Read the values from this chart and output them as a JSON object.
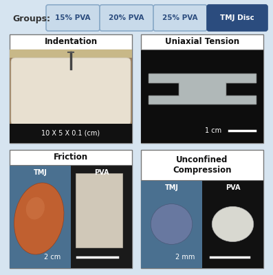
{
  "background_color": "#d6e4f0",
  "groups_label": "Groups:",
  "group_buttons": [
    "15% PVA",
    "20% PVA",
    "25% PVA",
    "TMJ Disc"
  ],
  "button_colors": [
    "#c8daea",
    "#c8daea",
    "#c8daea",
    "#2b4c7e"
  ],
  "button_edge_colors": [
    "#8aaac8",
    "#8aaac8",
    "#8aaac8",
    "#2b4c7e"
  ],
  "button_text_colors": [
    "#2b4c7e",
    "#2b4c7e",
    "#2b4c7e",
    "#ffffff"
  ],
  "button_fontsize": 7.5,
  "groups_fontsize": 9,
  "panel_titles": [
    "Indentation",
    "Uniaxial Tension",
    "Friction",
    "Unconfined\nCompression"
  ],
  "panel_subtitles": [
    "10 X 5 X 0.1 (cm)",
    "1 cm",
    "2 cm",
    "2 mm"
  ]
}
